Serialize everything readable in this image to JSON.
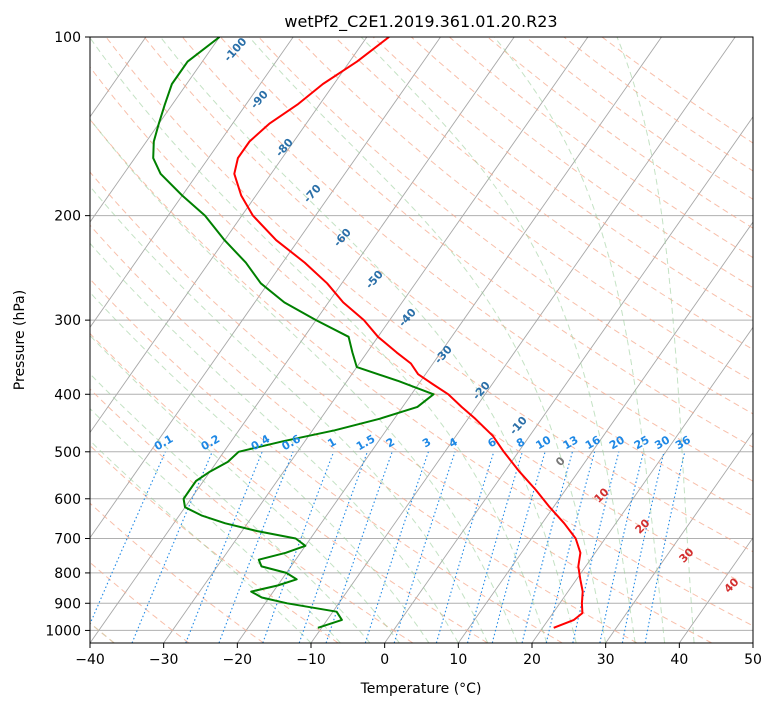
{
  "chart_data": {
    "type": "line",
    "title": "wetPf2_C2E1.2019.361.01.20.R23",
    "xlabel": "Temperature (°C)",
    "ylabel": "Pressure (hPa)",
    "xlim": [
      -40,
      50
    ],
    "ylim": [
      1050,
      100
    ],
    "y_scale": "log",
    "skew": true,
    "grid": true,
    "x_ticks": [
      "−40",
      "−30",
      "−20",
      "−10",
      "0",
      "10",
      "20",
      "30",
      "40",
      "50"
    ],
    "x_tick_values": [
      -40,
      -30,
      -20,
      -10,
      0,
      10,
      20,
      30,
      40,
      50
    ],
    "y_ticks": [
      "100",
      "200",
      "300",
      "400",
      "500",
      "600",
      "700",
      "800",
      "900",
      "1000"
    ],
    "y_tick_values": [
      100,
      200,
      300,
      400,
      500,
      600,
      700,
      800,
      900,
      1000
    ],
    "series": [
      {
        "color": "#ff0000",
        "p": [
          990,
          960,
          935,
          900,
          860,
          820,
          780,
          740,
          700,
          660,
          620,
          580,
          540,
          500,
          470,
          440,
          420,
          400,
          385,
          370,
          355,
          340,
          320,
          300,
          280,
          260,
          240,
          220,
          200,
          185,
          170,
          160,
          150,
          140,
          130,
          120,
          110,
          100
        ],
        "t": [
          21.5,
          23.5,
          24,
          23,
          22,
          20.5,
          19,
          18,
          16,
          13,
          9.5,
          6,
          2,
          -2,
          -5,
          -9,
          -12,
          -15,
          -18,
          -21,
          -23,
          -26,
          -30,
          -33.5,
          -38,
          -42,
          -47,
          -53,
          -58.5,
          -62,
          -65,
          -66,
          -66,
          -65,
          -63,
          -61.5,
          -59,
          -57
        ]
      },
      {
        "color": "#008000",
        "p": [
          990,
          960,
          930,
          900,
          880,
          860,
          840,
          820,
          800,
          780,
          760,
          740,
          720,
          700,
          680,
          660,
          640,
          620,
          600,
          580,
          560,
          540,
          520,
          500,
          480,
          460,
          440,
          420,
          400,
          380,
          360,
          340,
          320,
          300,
          280,
          260,
          240,
          220,
          200,
          185,
          170,
          160,
          150,
          140,
          130,
          120,
          110,
          100
        ],
        "t": [
          -10.5,
          -8,
          -9.5,
          -17,
          -21,
          -23,
          -20,
          -18,
          -20,
          -24,
          -25,
          -22,
          -20,
          -22,
          -28,
          -33,
          -37,
          -40,
          -41,
          -41,
          -41,
          -40,
          -38.5,
          -38,
          -33,
          -27,
          -22,
          -18,
          -17,
          -23,
          -30,
          -32,
          -34,
          -40,
          -46,
          -51,
          -55,
          -60,
          -65,
          -70,
          -75,
          -77.5,
          -79,
          -80,
          -81,
          -82,
          -82,
          -80
        ]
      }
    ],
    "dry_adiabat_labels": [
      "-100",
      "-90",
      "-80",
      "-70",
      "-60",
      "-50",
      "-40",
      "-30",
      "-20",
      "-10"
    ],
    "moist_adiabat_labels": [
      "0",
      "10",
      "20",
      "30",
      "40"
    ],
    "mixing_ratio_labels": [
      "0.1",
      "0.2",
      "0.4",
      "0.6",
      "1",
      "1.5",
      "2",
      "3",
      "4",
      "6",
      "8",
      "10",
      "13",
      "16",
      "20",
      "25",
      "30",
      "36"
    ],
    "mixing_ratio_values": [
      0.1,
      0.2,
      0.4,
      0.6,
      1,
      1.5,
      2,
      3,
      4,
      6,
      8,
      10,
      13,
      16,
      20,
      25,
      30,
      36
    ]
  }
}
